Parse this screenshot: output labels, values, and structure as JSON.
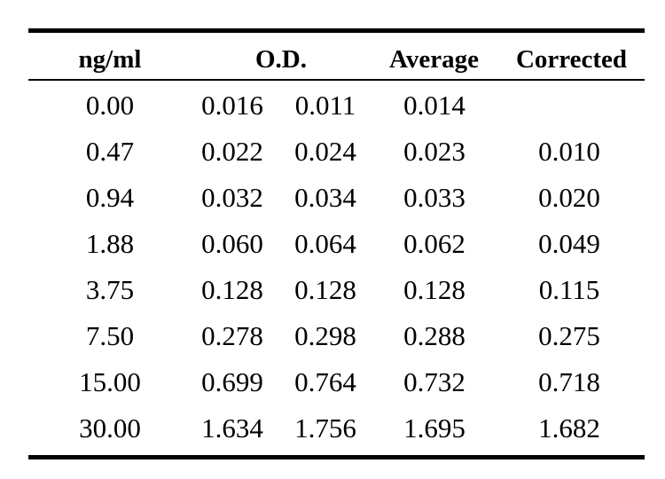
{
  "table": {
    "headers": {
      "concentration": "ng/ml",
      "od": "O.D.",
      "average": "Average",
      "corrected": "Corrected"
    },
    "rows": [
      {
        "concentration": "0.00",
        "od1": "0.016",
        "od2": "0.011",
        "average": "0.014",
        "corrected": ""
      },
      {
        "concentration": "0.47",
        "od1": "0.022",
        "od2": "0.024",
        "average": "0.023",
        "corrected": "0.010"
      },
      {
        "concentration": "0.94",
        "od1": "0.032",
        "od2": "0.034",
        "average": "0.033",
        "corrected": "0.020"
      },
      {
        "concentration": "1.88",
        "od1": "0.060",
        "od2": "0.064",
        "average": "0.062",
        "corrected": "0.049"
      },
      {
        "concentration": "3.75",
        "od1": "0.128",
        "od2": "0.128",
        "average": "0.128",
        "corrected": "0.115"
      },
      {
        "concentration": "7.50",
        "od1": "0.278",
        "od2": "0.298",
        "average": "0.288",
        "corrected": "0.275"
      },
      {
        "concentration": "15.00",
        "od1": "0.699",
        "od2": "0.764",
        "average": "0.732",
        "corrected": "0.718"
      },
      {
        "concentration": "30.00",
        "od1": "1.634",
        "od2": "1.756",
        "average": "1.695",
        "corrected": "1.682"
      }
    ]
  }
}
